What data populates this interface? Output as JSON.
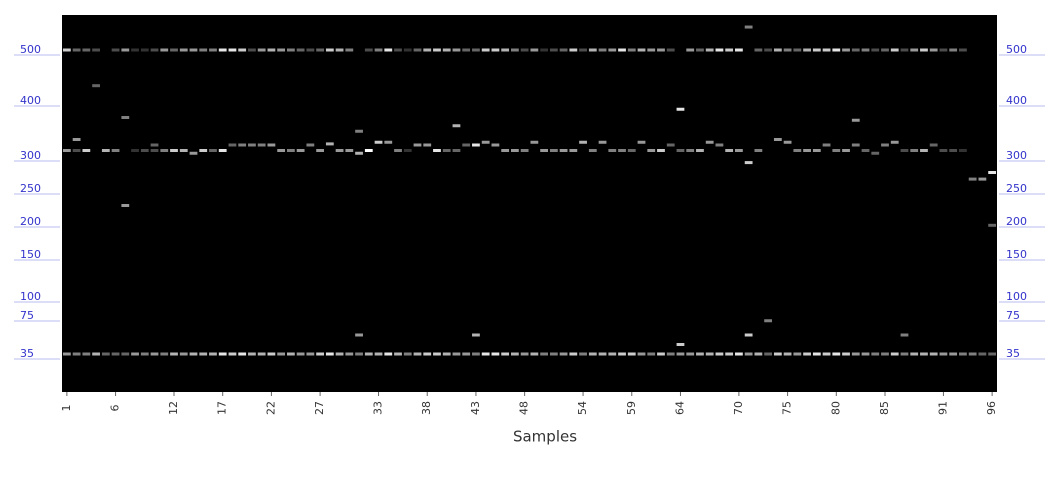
{
  "chart_data": {
    "type": "gel",
    "x_label": "Samples",
    "ladder": [
      500,
      400,
      300,
      250,
      200,
      150,
      100,
      75,
      35
    ],
    "ladder_color": "#3333cc",
    "lane_ticks": [
      1,
      6,
      12,
      17,
      22,
      27,
      33,
      38,
      43,
      48,
      54,
      59,
      64,
      70,
      75,
      80,
      85,
      91,
      96
    ],
    "lanes": [
      [
        [
          500,
          0.8
        ],
        [
          310,
          0.6
        ],
        [
          35,
          0.6
        ]
      ],
      [
        [
          500,
          0.4
        ],
        [
          330,
          0.6
        ],
        [
          310,
          0.3
        ],
        [
          35,
          0.5
        ]
      ],
      [
        [
          500,
          0.4
        ],
        [
          310,
          0.8
        ],
        [
          35,
          0.5
        ]
      ],
      [
        [
          500,
          0.3
        ],
        [
          430,
          0.4
        ],
        [
          35,
          0.7
        ]
      ],
      [
        [
          310,
          0.7
        ],
        [
          35,
          0.4
        ]
      ],
      [
        [
          500,
          0.3
        ],
        [
          310,
          0.5
        ],
        [
          35,
          0.4
        ]
      ],
      [
        [
          500,
          0.6
        ],
        [
          370,
          0.5
        ],
        [
          225,
          0.6
        ],
        [
          35,
          0.4
        ]
      ],
      [
        [
          500,
          0.2
        ],
        [
          310,
          0.2
        ],
        [
          35,
          0.6
        ]
      ],
      [
        [
          500,
          0.2
        ],
        [
          310,
          0.3
        ],
        [
          35,
          0.5
        ]
      ],
      [
        [
          500,
          0.3
        ],
        [
          320,
          0.4
        ],
        [
          310,
          0.3
        ],
        [
          35,
          0.6
        ]
      ],
      [
        [
          500,
          0.6
        ],
        [
          310,
          0.5
        ],
        [
          35,
          0.5
        ]
      ],
      [
        [
          500,
          0.4
        ],
        [
          310,
          0.8
        ],
        [
          35,
          0.7
        ]
      ],
      [
        [
          500,
          0.6
        ],
        [
          310,
          0.7
        ],
        [
          35,
          0.6
        ]
      ],
      [
        [
          500,
          0.6
        ],
        [
          305,
          0.6
        ],
        [
          35,
          0.7
        ]
      ],
      [
        [
          500,
          0.5
        ],
        [
          310,
          0.8
        ],
        [
          35,
          0.7
        ]
      ],
      [
        [
          500,
          0.5
        ],
        [
          310,
          0.4
        ],
        [
          35,
          0.7
        ]
      ],
      [
        [
          500,
          0.9
        ],
        [
          310,
          0.9
        ],
        [
          35,
          0.9
        ]
      ],
      [
        [
          500,
          0.9
        ],
        [
          320,
          0.4
        ],
        [
          35,
          0.8
        ]
      ],
      [
        [
          500,
          0.8
        ],
        [
          320,
          0.5
        ],
        [
          35,
          0.9
        ]
      ],
      [
        [
          500,
          0.3
        ],
        [
          320,
          0.5
        ],
        [
          35,
          0.7
        ]
      ],
      [
        [
          500,
          0.6
        ],
        [
          320,
          0.5
        ],
        [
          35,
          0.7
        ]
      ],
      [
        [
          500,
          0.7
        ],
        [
          320,
          0.6
        ],
        [
          35,
          0.8
        ]
      ],
      [
        [
          500,
          0.6
        ],
        [
          310,
          0.6
        ],
        [
          35,
          0.6
        ]
      ],
      [
        [
          500,
          0.5
        ],
        [
          310,
          0.5
        ],
        [
          35,
          0.7
        ]
      ],
      [
        [
          500,
          0.4
        ],
        [
          310,
          0.6
        ],
        [
          35,
          0.6
        ]
      ],
      [
        [
          500,
          0.3
        ],
        [
          320,
          0.5
        ],
        [
          35,
          0.6
        ]
      ],
      [
        [
          500,
          0.4
        ],
        [
          310,
          0.6
        ],
        [
          35,
          0.8
        ]
      ],
      [
        [
          500,
          0.8
        ],
        [
          322,
          0.7
        ],
        [
          35,
          0.9
        ]
      ],
      [
        [
          500,
          0.7
        ],
        [
          310,
          0.6
        ],
        [
          35,
          0.7
        ]
      ],
      [
        [
          500,
          0.5
        ],
        [
          310,
          0.6
        ],
        [
          35,
          0.6
        ]
      ],
      [
        [
          345,
          0.5
        ],
        [
          305,
          0.7
        ],
        [
          55,
          0.6
        ],
        [
          35,
          0.5
        ]
      ],
      [
        [
          500,
          0.3
        ],
        [
          310,
          1.0
        ],
        [
          35,
          0.7
        ]
      ],
      [
        [
          500,
          0.5
        ],
        [
          325,
          0.8
        ],
        [
          35,
          0.7
        ]
      ],
      [
        [
          500,
          0.9
        ],
        [
          325,
          0.6
        ],
        [
          35,
          0.9
        ]
      ],
      [
        [
          500,
          0.3
        ],
        [
          310,
          0.5
        ],
        [
          35,
          0.7
        ]
      ],
      [
        [
          500,
          0.2
        ],
        [
          310,
          0.2
        ],
        [
          35,
          0.5
        ]
      ],
      [
        [
          500,
          0.4
        ],
        [
          320,
          0.6
        ],
        [
          35,
          0.7
        ]
      ],
      [
        [
          500,
          0.7
        ],
        [
          320,
          0.6
        ],
        [
          35,
          0.8
        ]
      ],
      [
        [
          500,
          0.8
        ],
        [
          310,
          0.9
        ],
        [
          35,
          0.8
        ]
      ],
      [
        [
          500,
          0.7
        ],
        [
          310,
          0.4
        ],
        [
          35,
          0.7
        ]
      ],
      [
        [
          500,
          0.6
        ],
        [
          355,
          0.7
        ],
        [
          310,
          0.4
        ],
        [
          35,
          0.6
        ]
      ],
      [
        [
          500,
          0.4
        ],
        [
          320,
          0.4
        ],
        [
          35,
          0.6
        ]
      ],
      [
        [
          500,
          0.4
        ],
        [
          320,
          0.9
        ],
        [
          55,
          0.7
        ],
        [
          35,
          0.5
        ]
      ],
      [
        [
          500,
          0.8
        ],
        [
          325,
          0.6
        ],
        [
          35,
          0.9
        ]
      ],
      [
        [
          500,
          0.8
        ],
        [
          320,
          0.6
        ],
        [
          35,
          0.9
        ]
      ],
      [
        [
          500,
          0.7
        ],
        [
          310,
          0.6
        ],
        [
          35,
          0.8
        ]
      ],
      [
        [
          500,
          0.5
        ],
        [
          310,
          0.6
        ],
        [
          35,
          0.7
        ]
      ],
      [
        [
          500,
          0.3
        ],
        [
          310,
          0.5
        ],
        [
          35,
          0.6
        ]
      ],
      [
        [
          500,
          0.6
        ],
        [
          325,
          0.6
        ],
        [
          35,
          0.7
        ]
      ],
      [
        [
          500,
          0.2
        ],
        [
          310,
          0.6
        ],
        [
          35,
          0.5
        ]
      ],
      [
        [
          500,
          0.3
        ],
        [
          310,
          0.5
        ],
        [
          35,
          0.5
        ]
      ],
      [
        [
          500,
          0.4
        ],
        [
          310,
          0.6
        ],
        [
          35,
          0.6
        ]
      ],
      [
        [
          500,
          0.8
        ],
        [
          310,
          0.6
        ],
        [
          35,
          0.8
        ]
      ],
      [
        [
          500,
          0.3
        ],
        [
          325,
          0.7
        ],
        [
          35,
          0.5
        ]
      ],
      [
        [
          500,
          0.7
        ],
        [
          310,
          0.5
        ],
        [
          35,
          0.7
        ]
      ],
      [
        [
          500,
          0.5
        ],
        [
          325,
          0.6
        ],
        [
          35,
          0.7
        ]
      ],
      [
        [
          500,
          0.6
        ],
        [
          310,
          0.5
        ],
        [
          35,
          0.7
        ]
      ],
      [
        [
          500,
          0.9
        ],
        [
          310,
          0.5
        ],
        [
          35,
          0.8
        ]
      ],
      [
        [
          500,
          0.5
        ],
        [
          310,
          0.4
        ],
        [
          35,
          0.8
        ]
      ],
      [
        [
          500,
          0.7
        ],
        [
          325,
          0.6
        ],
        [
          35,
          0.6
        ]
      ],
      [
        [
          500,
          0.6
        ],
        [
          310,
          0.6
        ],
        [
          35,
          0.5
        ]
      ],
      [
        [
          500,
          0.6
        ],
        [
          310,
          0.8
        ],
        [
          35,
          0.8
        ]
      ],
      [
        [
          500,
          0.3
        ],
        [
          320,
          0.4
        ],
        [
          35,
          0.5
        ]
      ],
      [
        [
          385,
          0.9
        ],
        [
          310,
          0.4
        ],
        [
          45,
          0.8
        ],
        [
          35,
          0.6
        ]
      ],
      [
        [
          500,
          0.6
        ],
        [
          310,
          0.5
        ],
        [
          35,
          0.6
        ]
      ],
      [
        [
          500,
          0.4
        ],
        [
          310,
          0.7
        ],
        [
          35,
          0.7
        ]
      ],
      [
        [
          500,
          0.7
        ],
        [
          325,
          0.6
        ],
        [
          35,
          0.7
        ]
      ],
      [
        [
          500,
          0.9
        ],
        [
          320,
          0.5
        ],
        [
          35,
          0.8
        ]
      ],
      [
        [
          500,
          0.8
        ],
        [
          310,
          0.7
        ],
        [
          35,
          0.8
        ]
      ],
      [
        [
          500,
          0.9
        ],
        [
          310,
          0.6
        ],
        [
          35,
          0.9
        ]
      ],
      [
        [
          545,
          0.5
        ],
        [
          290,
          0.8
        ],
        [
          55,
          0.8
        ],
        [
          35,
          0.6
        ]
      ],
      [
        [
          500,
          0.4
        ],
        [
          310,
          0.5
        ],
        [
          35,
          0.7
        ]
      ],
      [
        [
          500,
          0.3
        ],
        [
          70,
          0.5
        ],
        [
          35,
          0.4
        ]
      ],
      [
        [
          500,
          0.7
        ],
        [
          330,
          0.6
        ],
        [
          35,
          0.8
        ]
      ],
      [
        [
          500,
          0.5
        ],
        [
          325,
          0.6
        ],
        [
          35,
          0.7
        ]
      ],
      [
        [
          500,
          0.4
        ],
        [
          310,
          0.5
        ],
        [
          35,
          0.6
        ]
      ],
      [
        [
          500,
          0.7
        ],
        [
          310,
          0.6
        ],
        [
          35,
          0.8
        ]
      ],
      [
        [
          500,
          0.8
        ],
        [
          310,
          0.6
        ],
        [
          35,
          0.9
        ]
      ],
      [
        [
          500,
          0.8
        ],
        [
          320,
          0.5
        ],
        [
          35,
          0.8
        ]
      ],
      [
        [
          500,
          0.9
        ],
        [
          310,
          0.5
        ],
        [
          35,
          0.9
        ]
      ],
      [
        [
          500,
          0.6
        ],
        [
          310,
          0.6
        ],
        [
          35,
          0.8
        ]
      ],
      [
        [
          500,
          0.4
        ],
        [
          365,
          0.6
        ],
        [
          320,
          0.5
        ],
        [
          35,
          0.6
        ]
      ],
      [
        [
          500,
          0.5
        ],
        [
          310,
          0.4
        ],
        [
          35,
          0.6
        ]
      ],
      [
        [
          500,
          0.3
        ],
        [
          305,
          0.4
        ],
        [
          35,
          0.5
        ]
      ],
      [
        [
          500,
          0.4
        ],
        [
          320,
          0.5
        ],
        [
          35,
          0.5
        ]
      ],
      [
        [
          500,
          0.8
        ],
        [
          325,
          0.6
        ],
        [
          35,
          0.8
        ]
      ],
      [
        [
          500,
          0.3
        ],
        [
          310,
          0.3
        ],
        [
          55,
          0.5
        ],
        [
          35,
          0.5
        ]
      ],
      [
        [
          500,
          0.6
        ],
        [
          310,
          0.5
        ],
        [
          35,
          0.7
        ]
      ],
      [
        [
          500,
          0.8
        ],
        [
          310,
          0.7
        ],
        [
          35,
          0.7
        ]
      ],
      [
        [
          500,
          0.6
        ],
        [
          320,
          0.4
        ],
        [
          35,
          0.7
        ]
      ],
      [
        [
          500,
          0.3
        ],
        [
          310,
          0.3
        ],
        [
          35,
          0.6
        ]
      ],
      [
        [
          500,
          0.5
        ],
        [
          310,
          0.3
        ],
        [
          35,
          0.6
        ]
      ],
      [
        [
          500,
          0.3
        ],
        [
          310,
          0.2
        ],
        [
          35,
          0.5
        ]
      ],
      [
        [
          265,
          0.5
        ],
        [
          35,
          0.5
        ]
      ],
      [
        [
          265,
          0.6
        ],
        [
          35,
          0.4
        ]
      ],
      [
        [
          275,
          0.9
        ],
        [
          195,
          0.4
        ],
        [
          35,
          0.4
        ]
      ]
    ]
  }
}
